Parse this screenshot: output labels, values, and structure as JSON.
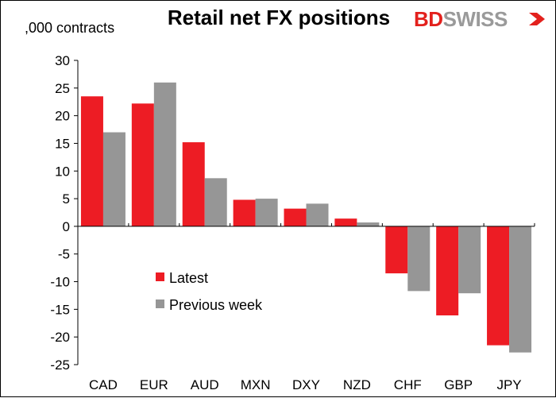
{
  "chart_data": {
    "type": "bar",
    "title": "Retail net FX positions",
    "ylabel": ",000 contracts",
    "xlabel": "",
    "categories": [
      "CAD",
      "EUR",
      "AUD",
      "MXN",
      "DXY",
      "NZD",
      "CHF",
      "GBP",
      "JPY"
    ],
    "series": [
      {
        "name": "Latest",
        "values": [
          23.5,
          22.2,
          15.2,
          4.8,
          3.2,
          1.4,
          -8.5,
          -16.1,
          -21.5
        ],
        "color": "#ed1c24"
      },
      {
        "name": "Previous week",
        "values": [
          17.0,
          26.0,
          8.7,
          5.0,
          4.1,
          0.7,
          -11.7,
          -12.1,
          -22.8
        ],
        "color": "#969696"
      }
    ],
    "ylim": [
      -25,
      30
    ],
    "yticks": [
      30,
      25,
      20,
      15,
      10,
      5,
      0,
      -5,
      -10,
      -15,
      -20,
      -25
    ],
    "ytick_labels": [
      "30",
      "25",
      "20",
      "15",
      "10",
      "5",
      "0",
      "-5",
      "-10",
      "-15",
      "-20",
      "-25"
    ],
    "grid": false,
    "legend": "lower-left inside plot"
  },
  "branding": {
    "logo_bd": "BD",
    "logo_swiss": "SWISS"
  }
}
